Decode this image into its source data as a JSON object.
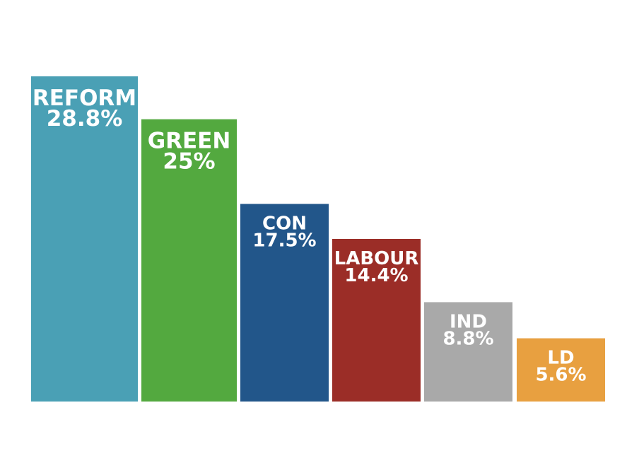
{
  "chart_data": {
    "type": "bar",
    "title": "",
    "xlabel": "",
    "ylabel": "",
    "ylim": [
      0,
      28.8
    ],
    "grid": false,
    "legend": "none",
    "categories": [
      "REFORM",
      "GREEN",
      "CON",
      "LABOUR",
      "IND",
      "LD"
    ],
    "values": [
      28.8,
      25,
      17.5,
      14.4,
      8.8,
      5.6
    ],
    "value_labels": [
      "28.8%",
      "25%",
      "17.5%",
      "14.4%",
      "8.8%",
      "5.6%"
    ],
    "colors": [
      "#4aa0b5",
      "#53a93f",
      "#22568a",
      "#9b2d27",
      "#a9a9a9",
      "#e8a040"
    ]
  }
}
